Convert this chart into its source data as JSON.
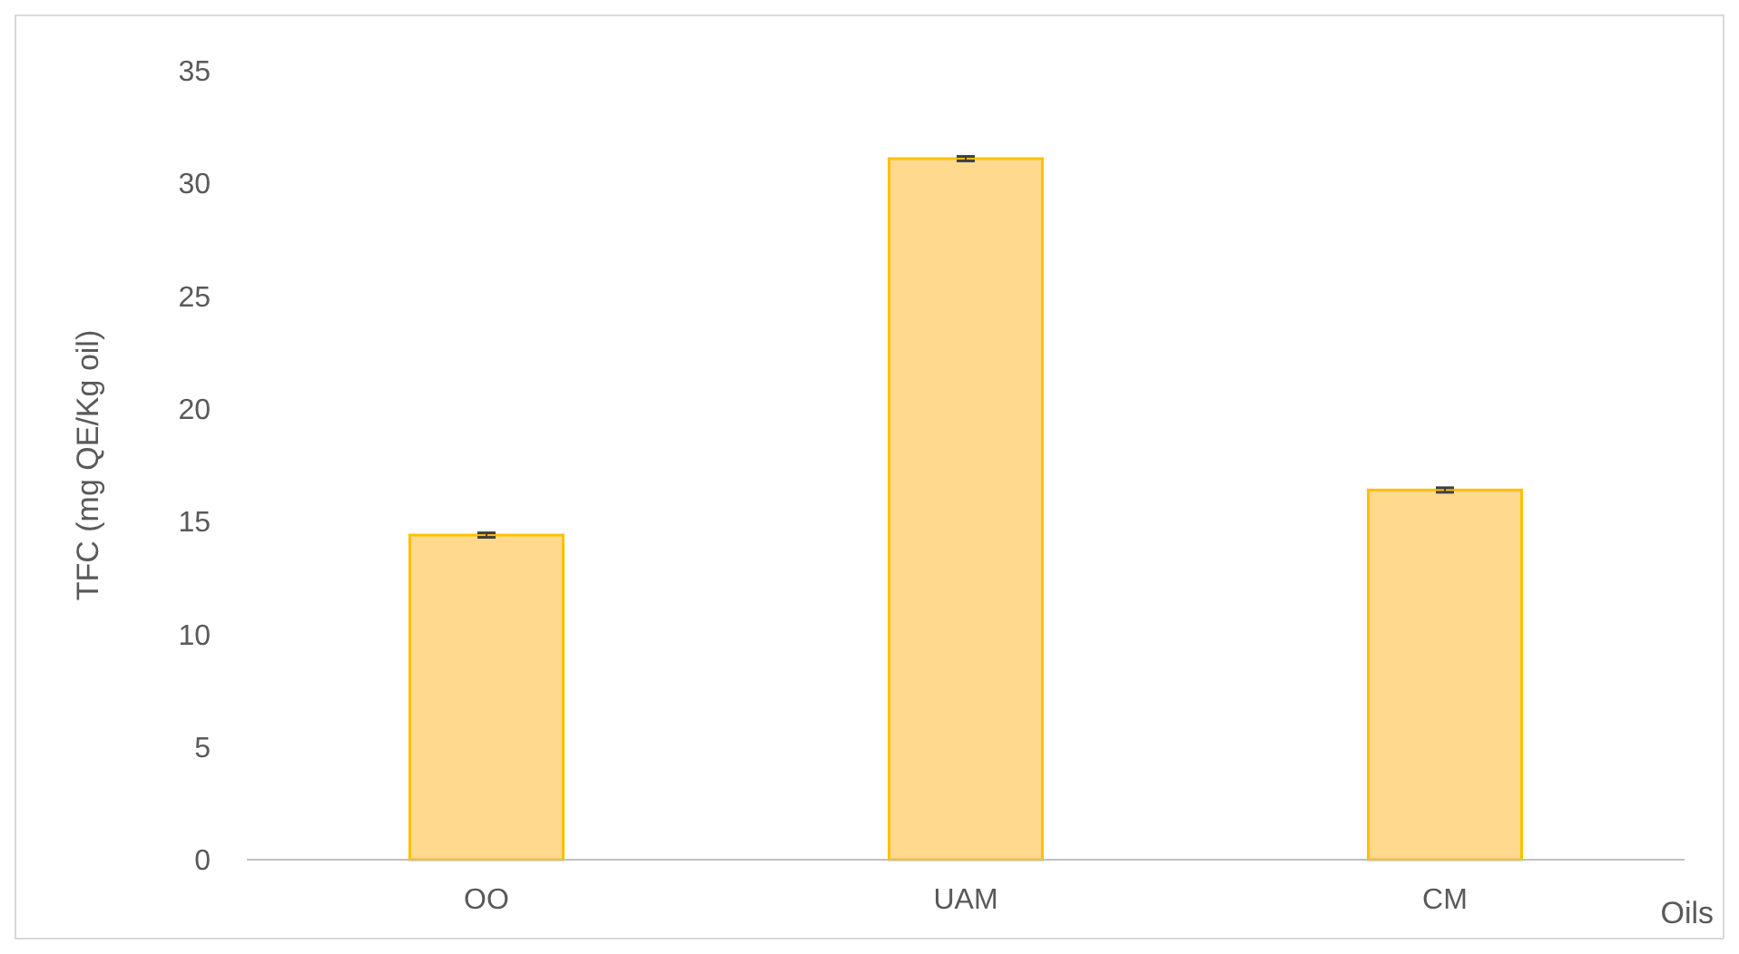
{
  "chart_data": {
    "type": "bar",
    "xlabel": "Oils",
    "ylabel": "TFC (mg QE/Kg oil)",
    "categories": [
      "OO",
      "UAM",
      "CM"
    ],
    "values": [
      14.4,
      31.1,
      16.4
    ],
    "errors": [
      0.1,
      0.1,
      0.1
    ],
    "color": "#fed98e",
    "ylim": [
      0,
      35
    ],
    "yticks": [
      0,
      5,
      10,
      15,
      20,
      25,
      30,
      35
    ],
    "grid": false
  }
}
